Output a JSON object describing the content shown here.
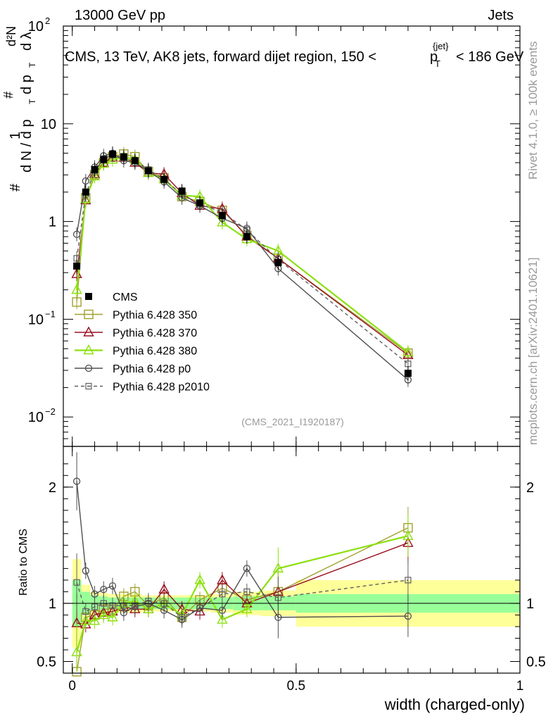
{
  "header": {
    "energy_label": "13000 GeV pp",
    "category_label": "Jets"
  },
  "side_labels": {
    "rivet": "Rivet 4.1.0, ≥ 100k events",
    "source": "mcplots.cern.ch [arXiv:2401.10621]"
  },
  "colors": {
    "data": "#000000",
    "p350": "#a0a030",
    "p370": "#9a1020",
    "p380": "#8ce010",
    "p0": "#505050",
    "p2010": "#606060",
    "band_inner": "#99ff99",
    "band_outer": "#ffff99"
  },
  "chart_data": {
    "type": "line",
    "title_parts": {
      "main": "CMS, 13 TeV, AK8 jets, forward dijet region, 150 <",
      "p": "p",
      "T": "T",
      "jet": "{jet}",
      "suffix": "< 186 GeV"
    },
    "ylabel_parts": {
      "hash": "#",
      "one": "1",
      "dN": "d N / d p",
      "T": "T",
      "hash2": "#",
      "dp": "d p",
      "T2": "T",
      "dl": "d λ",
      "d2N": "d²N"
    },
    "xlabel": "width (charged-only)",
    "ratio_ylabel": "Ratio to CMS",
    "analysis_id": "(CMS_2021_I1920187)",
    "x_ticks": [
      {
        "v": 0,
        "label": "0"
      },
      {
        "v": 0.5,
        "label": "0.5"
      },
      {
        "v": 1,
        "label": "1"
      }
    ],
    "y_ticks": [
      {
        "v": 0.01,
        "base": "10",
        "exp": "−2"
      },
      {
        "v": 0.1,
        "base": "10",
        "exp": "−1"
      },
      {
        "v": 1,
        "base": "1",
        "exp": ""
      },
      {
        "v": 10,
        "base": "10",
        "exp": ""
      },
      {
        "v": 100,
        "base": "10",
        "exp": "2"
      }
    ],
    "ratio_ticks": [
      {
        "v": 0.5,
        "label": "0.5"
      },
      {
        "v": 1,
        "label": "1"
      },
      {
        "v": 2,
        "label": "2"
      }
    ],
    "xlim": [
      -0.02,
      1.0
    ],
    "ylim": [
      0.005,
      100
    ],
    "ratio_ylim": [
      0.4,
      2.35
    ],
    "x": [
      0.01,
      0.03,
      0.05,
      0.07,
      0.09,
      0.115,
      0.14,
      0.17,
      0.205,
      0.245,
      0.285,
      0.335,
      0.39,
      0.46,
      0.75
    ],
    "series": [
      {
        "name": "CMS",
        "key": "data",
        "marker": "square-filled",
        "values": [
          0.35,
          2.0,
          3.4,
          4.3,
          4.9,
          4.6,
          4.2,
          3.3,
          2.7,
          2.05,
          1.55,
          1.15,
          0.7,
          0.38,
          0.028
        ],
        "ratio": [
          1,
          1,
          1,
          1,
          1,
          1,
          1,
          1,
          1,
          1,
          1,
          1,
          1,
          1,
          1
        ]
      },
      {
        "name": "Pythia 6.428 350",
        "key": "p350",
        "marker": "square-open",
        "values": [
          0.15,
          1.75,
          3.0,
          4.0,
          4.6,
          4.9,
          4.6,
          3.25,
          2.8,
          1.8,
          1.6,
          1.3,
          0.72,
          0.42,
          0.045
        ],
        "ratio": [
          0.38,
          0.88,
          0.9,
          0.95,
          0.95,
          1.06,
          1.1,
          0.98,
          1.05,
          0.88,
          1.03,
          1.13,
          1.03,
          1.1,
          1.65
        ]
      },
      {
        "name": "Pythia 6.428 370",
        "key": "p370",
        "marker": "triangle-open",
        "values": [
          0.29,
          1.65,
          3.05,
          4.0,
          4.5,
          4.5,
          4.0,
          3.15,
          3.05,
          1.95,
          1.45,
          1.35,
          0.7,
          0.42,
          0.043
        ],
        "ratio": [
          0.83,
          0.82,
          0.9,
          0.92,
          0.93,
          0.97,
          0.95,
          0.95,
          1.12,
          0.95,
          0.93,
          1.2,
          1.0,
          1.1,
          1.52
        ]
      },
      {
        "name": "Pythia 6.428 380",
        "key": "p380",
        "marker": "triangle-open",
        "values": [
          0.2,
          1.7,
          2.9,
          3.9,
          4.3,
          4.6,
          4.3,
          3.15,
          2.7,
          1.85,
          1.8,
          0.98,
          0.66,
          0.5,
          0.046
        ],
        "ratio": [
          0.58,
          0.85,
          0.85,
          0.9,
          0.88,
          1.0,
          1.02,
          0.95,
          1.0,
          0.9,
          1.2,
          0.86,
          0.95,
          1.3,
          1.58
        ]
      },
      {
        "name": "Pythia 6.428 p0",
        "key": "p0",
        "marker": "circle-open",
        "values": [
          0.74,
          2.6,
          3.6,
          4.7,
          5.0,
          4.2,
          4.0,
          3.3,
          2.55,
          1.75,
          1.45,
          1.08,
          0.85,
          0.33,
          0.024
        ],
        "ratio": [
          2.05,
          1.28,
          1.08,
          1.12,
          1.15,
          0.92,
          0.97,
          1.0,
          0.94,
          0.86,
          0.96,
          0.94,
          1.3,
          0.88,
          0.89
        ]
      },
      {
        "name": "Pythia 6.428 p2010",
        "key": "p2010",
        "marker": "square-open-small",
        "values": [
          0.42,
          1.9,
          3.3,
          4.4,
          4.8,
          4.5,
          4.2,
          3.4,
          2.7,
          1.9,
          1.5,
          1.25,
          0.82,
          0.41,
          0.035
        ],
        "ratio": [
          1.18,
          0.93,
          0.97,
          1.0,
          0.98,
          0.98,
          0.98,
          1.02,
          1.0,
          0.88,
          0.96,
          1.08,
          1.1,
          1.05,
          1.2
        ]
      }
    ],
    "legend": [
      {
        "label": "CMS",
        "key": "data"
      },
      {
        "label": "Pythia 6.428 350",
        "key": "p350"
      },
      {
        "label": "Pythia 6.428 370",
        "key": "p370"
      },
      {
        "label": "Pythia 6.428 380",
        "key": "p380"
      },
      {
        "label": "Pythia 6.428 p0",
        "key": "p0"
      },
      {
        "label": "Pythia 6.428 p2010",
        "key": "p2010"
      }
    ],
    "band": {
      "x_edges": [
        0.0,
        0.02,
        0.04,
        0.06,
        0.08,
        0.1,
        0.13,
        0.155,
        0.185,
        0.225,
        0.265,
        0.31,
        0.36,
        0.42,
        0.5,
        1.0
      ],
      "inner_half": [
        0.2,
        0.1,
        0.07,
        0.06,
        0.05,
        0.05,
        0.05,
        0.05,
        0.05,
        0.05,
        0.05,
        0.05,
        0.06,
        0.06,
        0.08
      ],
      "outer_half": [
        0.38,
        0.16,
        0.1,
        0.09,
        0.08,
        0.08,
        0.08,
        0.07,
        0.07,
        0.07,
        0.07,
        0.08,
        0.1,
        0.11,
        0.2
      ]
    }
  }
}
